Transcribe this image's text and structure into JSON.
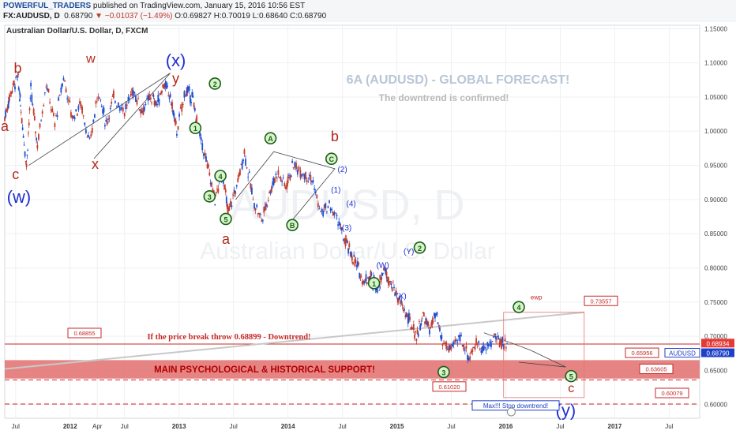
{
  "header": {
    "publisher": "POWERFUL_TRADERS",
    "published": "published on TradingView.com, January 15, 2016 10:56 EST",
    "symbol": "FX:AUDUSD, D",
    "last": "0.68790",
    "change": "−0.01037 (−1.49%)",
    "o": "O:0.69827",
    "h": "H:0.70019",
    "l": "L:0.68640",
    "c": "C:0.68790"
  },
  "chart_data": {
    "type": "candlestick",
    "title": "6A  (AUDUSD) - GLOBAL FORECAST!",
    "subtitle": "The downtrend is confirmed!",
    "instrument_label": "Australian Dollar/U.S. Dollar, D, FXCM",
    "watermark_symbol": "AUDUSD, D",
    "watermark_name": "Australian Dollar/U.S. Dollar",
    "x_ticks": [
      "Jul",
      "2012",
      "Apr",
      "Jul",
      "2013",
      "Jul",
      "2014",
      "Jul",
      "2015",
      "Jul",
      "2016",
      "Jul",
      "2017",
      "Jul"
    ],
    "x_tick_pos": [
      0.5,
      1.0,
      1.25,
      1.5,
      2.0,
      2.5,
      3.0,
      3.5,
      4.0,
      4.5,
      5.0,
      5.5,
      6.0,
      6.5
    ],
    "y_ticks": [
      "1.15000",
      "1.10000",
      "1.05000",
      "1.00000",
      "0.95000",
      "0.90000",
      "0.85000",
      "0.80000",
      "0.75000",
      "0.70000",
      "0.65000",
      "0.60000"
    ],
    "ylim": [
      0.58,
      1.155
    ],
    "xlim": [
      0.4,
      6.78
    ],
    "price_path": [
      [
        0.4,
        1.02
      ],
      [
        0.46,
        1.06
      ],
      [
        0.52,
        1.08
      ],
      [
        0.55,
        1.03
      ],
      [
        0.6,
        0.95
      ],
      [
        0.64,
        1.06
      ],
      [
        0.7,
        0.98
      ],
      [
        0.78,
        1.07
      ],
      [
        0.86,
        1.01
      ],
      [
        0.94,
        1.08
      ],
      [
        1.02,
        1.02
      ],
      [
        1.1,
        1.04
      ],
      [
        1.18,
        0.98
      ],
      [
        1.26,
        1.06
      ],
      [
        1.33,
        1.01
      ],
      [
        1.4,
        1.05
      ],
      [
        1.5,
        1.03
      ],
      [
        1.58,
        1.06
      ],
      [
        1.66,
        1.03
      ],
      [
        1.74,
        1.05
      ],
      [
        1.8,
        1.04
      ],
      [
        1.86,
        1.07
      ],
      [
        1.92,
        1.05
      ],
      [
        1.98,
        1.0
      ],
      [
        2.06,
        1.06
      ],
      [
        2.12,
        1.05
      ],
      [
        2.18,
        1.0
      ],
      [
        2.26,
        0.95
      ],
      [
        2.33,
        0.9
      ],
      [
        2.4,
        0.94
      ],
      [
        2.45,
        0.88
      ],
      [
        2.53,
        0.92
      ],
      [
        2.6,
        0.97
      ],
      [
        2.68,
        0.9
      ],
      [
        2.76,
        0.87
      ],
      [
        2.83,
        0.91
      ],
      [
        2.9,
        0.94
      ],
      [
        2.98,
        0.92
      ],
      [
        3.05,
        0.95
      ],
      [
        3.14,
        0.94
      ],
      [
        3.22,
        0.93
      ],
      [
        3.3,
        0.88
      ],
      [
        3.38,
        0.89
      ],
      [
        3.46,
        0.87
      ],
      [
        3.52,
        0.84
      ],
      [
        3.58,
        0.82
      ],
      [
        3.64,
        0.8
      ],
      [
        3.7,
        0.78
      ],
      [
        3.76,
        0.79
      ],
      [
        3.82,
        0.77
      ],
      [
        3.88,
        0.8
      ],
      [
        3.94,
        0.78
      ],
      [
        4.0,
        0.76
      ],
      [
        4.06,
        0.74
      ],
      [
        4.12,
        0.72
      ],
      [
        4.18,
        0.7
      ],
      [
        4.24,
        0.73
      ],
      [
        4.3,
        0.71
      ],
      [
        4.36,
        0.73
      ],
      [
        4.42,
        0.69
      ],
      [
        4.5,
        0.68
      ],
      [
        4.58,
        0.7
      ],
      [
        4.66,
        0.67
      ],
      [
        4.74,
        0.69
      ],
      [
        4.82,
        0.68
      ],
      [
        4.9,
        0.7
      ],
      [
        4.96,
        0.69
      ],
      [
        5.02,
        0.6879
      ]
    ],
    "levels": [
      {
        "label": "0.68855",
        "value": 0.68855
      },
      {
        "label": "0.73557",
        "value": 0.73557
      },
      {
        "label": "0.65956",
        "value": 0.65956
      },
      {
        "label": "0.63605",
        "value": 0.63605
      },
      {
        "label": "0.61020",
        "value": 0.6102
      },
      {
        "label": "0.60079",
        "value": 0.60079
      }
    ],
    "last_price": {
      "label": "0.68790",
      "value": 0.6879
    },
    "prior_price": {
      "label": "0.68934",
      "value": 0.68934
    },
    "support_zone": {
      "label": "MAIN PSYCHOLOGICAL & HISTORICAL SUPPORT!",
      "top": 0.665,
      "bottom": 0.638
    },
    "annotations": {
      "break_note": "If  the price break throw 0.68899 - Downtrend!",
      "stop_note": "Max!!! Stop downtrend!",
      "ewp": "ewp",
      "symbol_tag": "AUDUSD"
    },
    "wave_labels": [
      "b",
      "a",
      "c",
      "(w)",
      "w",
      "x",
      "(x)",
      "y",
      "1",
      "2",
      "3",
      "4",
      "5",
      "a",
      "A",
      "B",
      "C",
      "b",
      "(1)",
      "(2)",
      "(3)",
      "(4)",
      "(5)",
      "(W)",
      "(X)",
      "(Y)",
      "1",
      "2",
      "3",
      "4",
      "5",
      "c",
      "(y)"
    ],
    "colors": {
      "bull": "#1f4fd1",
      "bear": "#c43b2c",
      "support": "#e26f6f",
      "level_dash": "#d61f1f",
      "wave_blue": "#1f2fd1",
      "wave_red": "#b3271b",
      "wave_green": "#1d5e1d"
    }
  }
}
